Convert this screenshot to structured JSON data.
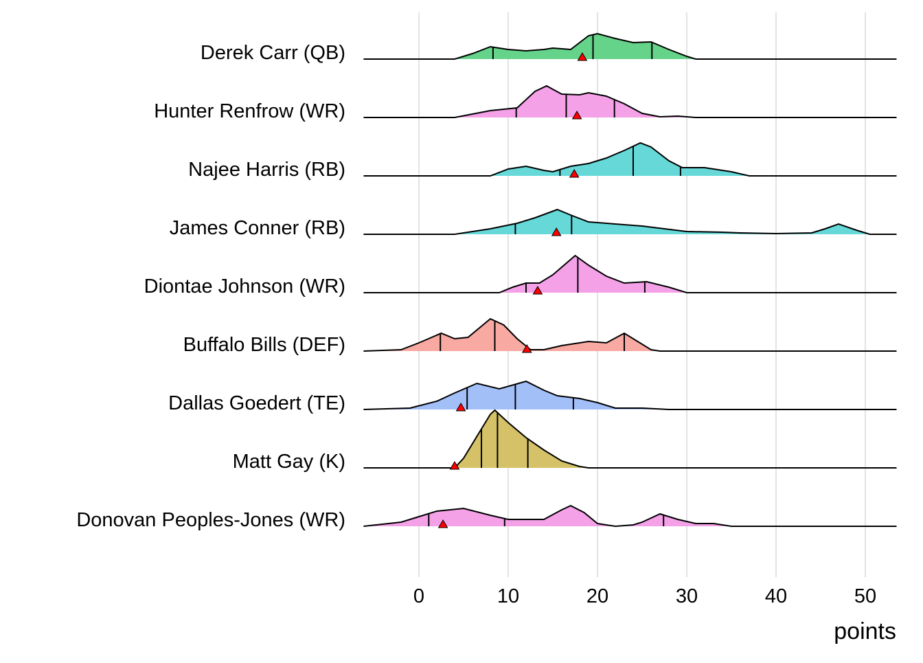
{
  "chart_data": {
    "type": "ridgeline",
    "title": "",
    "xlabel": "points",
    "ylabel": "",
    "xlim": [
      -6.2,
      53.5
    ],
    "x_ticks": [
      0,
      10,
      20,
      30,
      40,
      50
    ],
    "x_tick_labels": [
      "0",
      "10",
      "20",
      "30",
      "40",
      "50"
    ],
    "grid": "vertical major",
    "marker_color": "#FF0000",
    "series": [
      {
        "name": "Derek Carr (QB)",
        "color": "#66D38A",
        "density": [
          [
            -6.2,
            0
          ],
          [
            4,
            0
          ],
          [
            6,
            0.08
          ],
          [
            8,
            0.18
          ],
          [
            10,
            0.14
          ],
          [
            12,
            0.12
          ],
          [
            14,
            0.14
          ],
          [
            15,
            0.16
          ],
          [
            17,
            0.14
          ],
          [
            19,
            0.34
          ],
          [
            20,
            0.37
          ],
          [
            22,
            0.3
          ],
          [
            24,
            0.24
          ],
          [
            26,
            0.25
          ],
          [
            28,
            0.14
          ],
          [
            30,
            0.04
          ],
          [
            31,
            0
          ],
          [
            53.5,
            0
          ]
        ],
        "quantiles": [
          8.3,
          19.5,
          26.1
        ],
        "marker": 18.3
      },
      {
        "name": "Hunter Renfrow (WR)",
        "color": "#F4A1E8",
        "density": [
          [
            -6.2,
            0
          ],
          [
            4,
            0
          ],
          [
            8,
            0.1
          ],
          [
            11,
            0.14
          ],
          [
            13,
            0.38
          ],
          [
            14.3,
            0.46
          ],
          [
            16,
            0.34
          ],
          [
            18,
            0.33
          ],
          [
            19,
            0.36
          ],
          [
            21,
            0.31
          ],
          [
            23,
            0.2
          ],
          [
            25,
            0.06
          ],
          [
            27,
            0.01
          ],
          [
            29,
            0.02
          ],
          [
            30,
            0.01
          ],
          [
            31,
            0
          ],
          [
            53.5,
            0
          ]
        ],
        "quantiles": [
          10.9,
          16.5,
          21.9
        ],
        "marker": 17.7
      },
      {
        "name": "Najee Harris (RB)",
        "color": "#66D8D8",
        "density": [
          [
            -6.2,
            0
          ],
          [
            8,
            0
          ],
          [
            10,
            0.1
          ],
          [
            12,
            0.14
          ],
          [
            14,
            0.08
          ],
          [
            15,
            0.06
          ],
          [
            17,
            0.14
          ],
          [
            19,
            0.18
          ],
          [
            21,
            0.26
          ],
          [
            23,
            0.37
          ],
          [
            24.8,
            0.48
          ],
          [
            26,
            0.42
          ],
          [
            28,
            0.22
          ],
          [
            29.5,
            0.12
          ],
          [
            32,
            0.12
          ],
          [
            35,
            0.06
          ],
          [
            37,
            0
          ],
          [
            53.5,
            0
          ]
        ],
        "quantiles": [
          15.8,
          24.0,
          29.3
        ],
        "marker": 17.4
      },
      {
        "name": "James Conner (RB)",
        "color": "#66D8D8",
        "density": [
          [
            -6.2,
            0
          ],
          [
            4,
            0
          ],
          [
            8,
            0.08
          ],
          [
            11,
            0.16
          ],
          [
            13,
            0.24
          ],
          [
            15.5,
            0.36
          ],
          [
            17,
            0.28
          ],
          [
            19,
            0.18
          ],
          [
            25,
            0.12
          ],
          [
            30,
            0.04
          ],
          [
            34,
            0.03
          ],
          [
            36,
            0.02
          ],
          [
            40,
            0.01
          ],
          [
            44,
            0.02
          ],
          [
            45.5,
            0.08
          ],
          [
            47,
            0.15
          ],
          [
            49,
            0.06
          ],
          [
            50.5,
            0
          ],
          [
            53.5,
            0
          ]
        ],
        "quantiles": [
          10.8,
          17.1
        ],
        "marker": 15.4
      },
      {
        "name": "Diontae Johnson (WR)",
        "color": "#F4A1E8",
        "density": [
          [
            -6.2,
            0
          ],
          [
            9,
            0
          ],
          [
            10.5,
            0.08
          ],
          [
            12,
            0.14
          ],
          [
            13.5,
            0.14
          ],
          [
            15,
            0.26
          ],
          [
            17.5,
            0.54
          ],
          [
            19,
            0.4
          ],
          [
            21,
            0.24
          ],
          [
            23,
            0.14
          ],
          [
            25.5,
            0.16
          ],
          [
            28,
            0.08
          ],
          [
            30,
            0
          ],
          [
            53.5,
            0
          ]
        ],
        "quantiles": [
          12.0,
          17.8,
          25.3
        ],
        "marker": 13.3
      },
      {
        "name": "Buffalo Bills (DEF)",
        "color": "#F8A9A2",
        "density": [
          [
            -6.2,
            0
          ],
          [
            -2,
            0.02
          ],
          [
            0,
            0.12
          ],
          [
            2.5,
            0.26
          ],
          [
            4,
            0.18
          ],
          [
            5.5,
            0.2
          ],
          [
            8,
            0.47
          ],
          [
            9.5,
            0.38
          ],
          [
            11,
            0.18
          ],
          [
            12.5,
            0.02
          ],
          [
            14,
            0.02
          ],
          [
            16,
            0.08
          ],
          [
            19,
            0.14
          ],
          [
            21,
            0.12
          ],
          [
            23,
            0.26
          ],
          [
            24.5,
            0.14
          ],
          [
            26,
            0.02
          ],
          [
            27,
            0
          ],
          [
            53.5,
            0
          ]
        ],
        "quantiles": [
          2.4,
          8.5,
          23.0
        ],
        "marker": 12.1
      },
      {
        "name": "Dallas Goedert (TE)",
        "color": "#A3BFF8",
        "density": [
          [
            -6.2,
            0
          ],
          [
            -1,
            0.02
          ],
          [
            2,
            0.12
          ],
          [
            4,
            0.24
          ],
          [
            6.5,
            0.38
          ],
          [
            9,
            0.3
          ],
          [
            12,
            0.41
          ],
          [
            14,
            0.28
          ],
          [
            15.5,
            0.2
          ],
          [
            18,
            0.16
          ],
          [
            20,
            0.1
          ],
          [
            22,
            0.02
          ],
          [
            25,
            0.02
          ],
          [
            28,
            0
          ],
          [
            53.5,
            0
          ]
        ],
        "quantiles": [
          5.4,
          10.8,
          17.3
        ],
        "marker": 4.7
      },
      {
        "name": "Matt Gay (K)",
        "color": "#D4C168",
        "density": [
          [
            -6.2,
            0
          ],
          [
            4,
            0
          ],
          [
            5,
            0.14
          ],
          [
            6.5,
            0.46
          ],
          [
            8,
            0.78
          ],
          [
            8.5,
            0.84
          ],
          [
            10,
            0.66
          ],
          [
            12,
            0.44
          ],
          [
            14,
            0.26
          ],
          [
            16,
            0.1
          ],
          [
            18,
            0.02
          ],
          [
            19,
            0
          ],
          [
            53.5,
            0
          ]
        ],
        "quantiles": [
          7.0,
          8.8,
          12.2
        ],
        "marker": 4.0
      },
      {
        "name": "Donovan Peoples-Jones (WR)",
        "color": "#F4A1E8",
        "density": [
          [
            -6.2,
            0
          ],
          [
            -2,
            0.06
          ],
          [
            0,
            0.14
          ],
          [
            2,
            0.22
          ],
          [
            5,
            0.26
          ],
          [
            8,
            0.16
          ],
          [
            10,
            0.1
          ],
          [
            12,
            0.1
          ],
          [
            14,
            0.1
          ],
          [
            16,
            0.24
          ],
          [
            17,
            0.3
          ],
          [
            18.5,
            0.2
          ],
          [
            20,
            0.04
          ],
          [
            22,
            0
          ],
          [
            24,
            0.02
          ],
          [
            25,
            0.06
          ],
          [
            27,
            0.18
          ],
          [
            29,
            0.1
          ],
          [
            31,
            0.04
          ],
          [
            33,
            0.04
          ],
          [
            35,
            0
          ],
          [
            53.5,
            0
          ]
        ],
        "quantiles": [
          1.1,
          9.6,
          27.4
        ],
        "marker": 2.7
      }
    ]
  }
}
